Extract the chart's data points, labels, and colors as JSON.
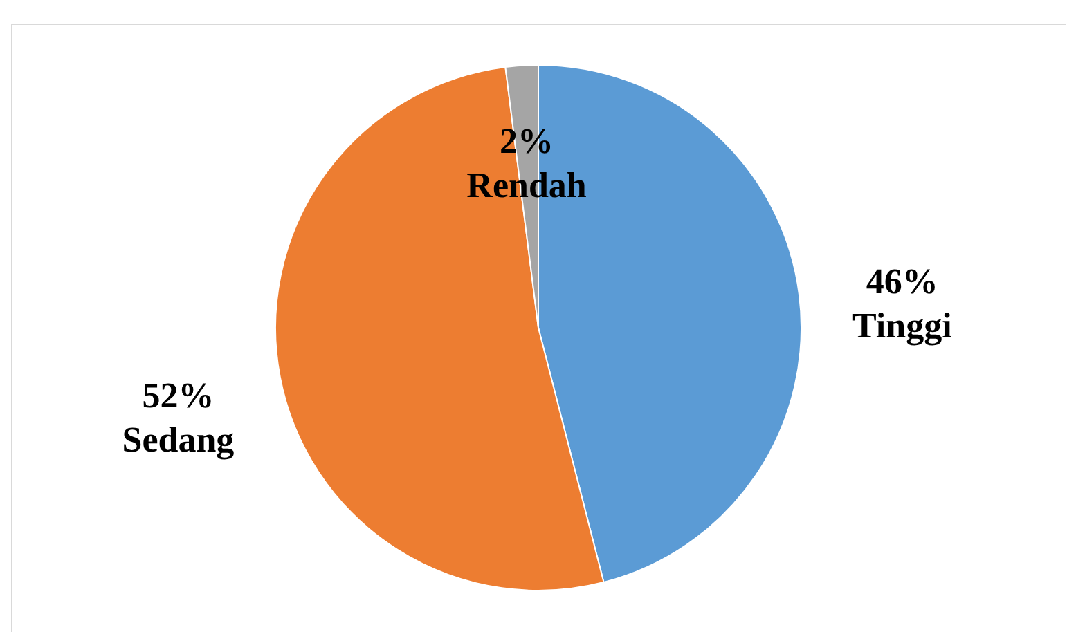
{
  "chart_data": {
    "type": "pie",
    "categories": [
      "Tinggi",
      "Sedang",
      "Rendah"
    ],
    "values": [
      46,
      52,
      2
    ],
    "colors": [
      "#5b9bd5",
      "#ed7d31",
      "#a5a5a5"
    ],
    "value_labels": [
      "46%",
      "52%",
      "2%"
    ]
  }
}
